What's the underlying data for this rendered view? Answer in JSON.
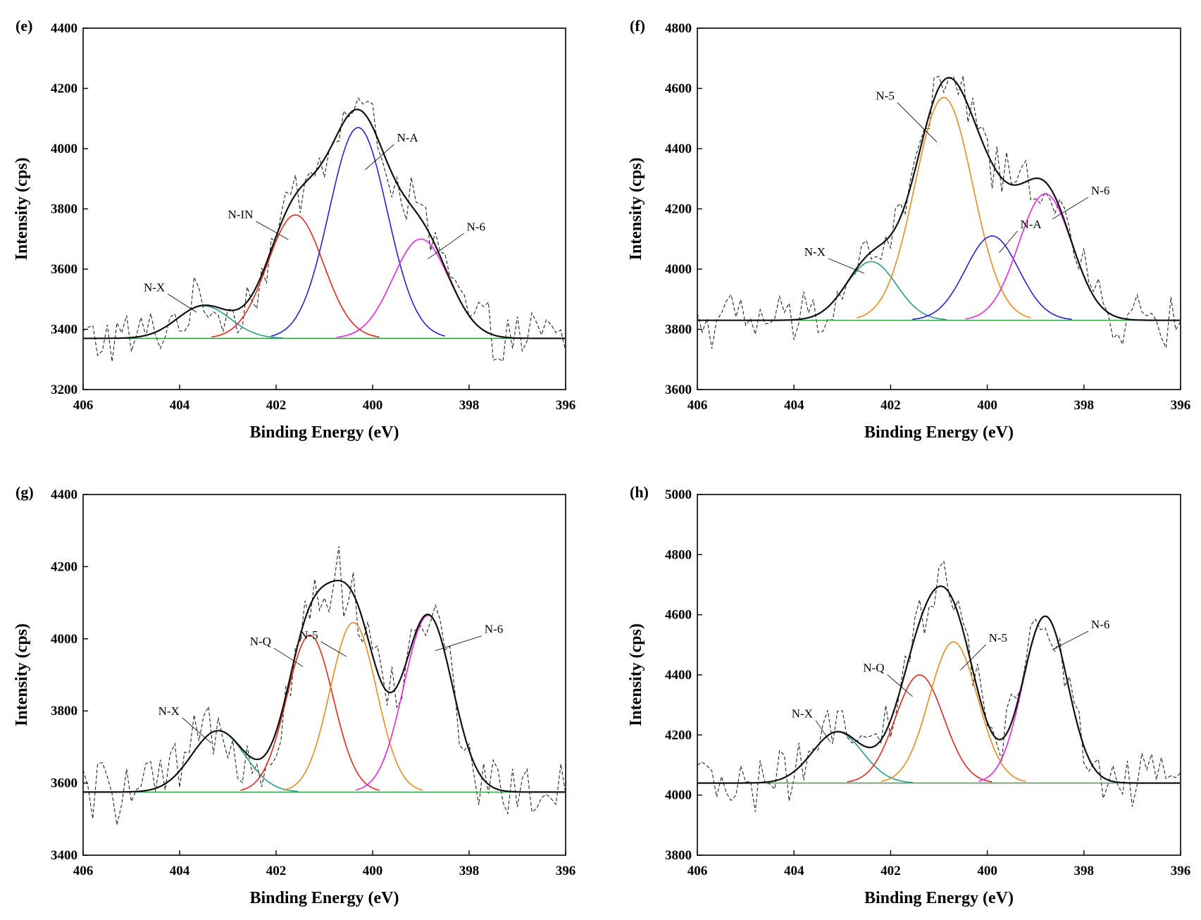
{
  "colors": {
    "envelope": "#111111",
    "raw": "#222222",
    "baseline": "#2a9d3a",
    "N-X": "#2a9a8e",
    "N-IN": "#e8251f",
    "N-Q": "#e8251f",
    "N-A": "#2222dd",
    "N-5": "#f08a1a",
    "N-6": "#ee22ee"
  },
  "chart_data": [
    {
      "type": "line",
      "panel": "(e)",
      "xlabel": "Binding Energy (eV)",
      "ylabel": "Intensity (cps)",
      "xlim": [
        406,
        396
      ],
      "ylim": [
        3200,
        4400
      ],
      "xticks": [
        "406",
        "404",
        "402",
        "400",
        "398",
        "396"
      ],
      "yticks": [
        "3200",
        "3400",
        "3600",
        "3800",
        "4000",
        "4200",
        "4400"
      ],
      "baseline": 3370,
      "peaks": [
        {
          "label": "N-X",
          "center": 403.5,
          "height": 108,
          "sigma": 0.55
        },
        {
          "label": "N-IN",
          "center": 401.6,
          "height": 410,
          "sigma": 0.58
        },
        {
          "label": "N-A",
          "center": 400.3,
          "height": 700,
          "sigma": 0.6
        },
        {
          "label": "N-6",
          "center": 399.0,
          "height": 330,
          "sigma": 0.58
        }
      ],
      "annotations": [
        "N-X",
        "N-IN",
        "N-A",
        "N-6"
      ]
    },
    {
      "type": "line",
      "panel": "(f)",
      "xlabel": "Binding Energy (eV)",
      "ylabel": "Intensity (cps)",
      "xlim": [
        406,
        396
      ],
      "ylim": [
        3600,
        4800
      ],
      "xticks": [
        "406",
        "404",
        "402",
        "400",
        "398",
        "396"
      ],
      "yticks": [
        "3600",
        "3800",
        "4000",
        "4200",
        "4400",
        "4600",
        "4800"
      ],
      "baseline": 3830,
      "peaks": [
        {
          "label": "N-X",
          "center": 402.4,
          "height": 195,
          "sigma": 0.52
        },
        {
          "label": "N-5",
          "center": 400.9,
          "height": 740,
          "sigma": 0.6
        },
        {
          "label": "N-A",
          "center": 399.9,
          "height": 280,
          "sigma": 0.55
        },
        {
          "label": "N-6",
          "center": 398.8,
          "height": 420,
          "sigma": 0.55
        }
      ],
      "annotations": [
        "N-X",
        "N-5",
        "N-A",
        "N-6"
      ]
    },
    {
      "type": "line",
      "panel": "(g)",
      "xlabel": "Binding Energy (eV)",
      "ylabel": "Intensity (cps)",
      "xlim": [
        406,
        396
      ],
      "ylim": [
        3400,
        4400
      ],
      "xticks": [
        "406",
        "404",
        "402",
        "400",
        "398",
        "396"
      ],
      "yticks": [
        "3400",
        "3600",
        "3800",
        "4000",
        "4200",
        "4400"
      ],
      "baseline": 3575,
      "peaks": [
        {
          "label": "N-X",
          "center": 403.2,
          "height": 170,
          "sigma": 0.55
        },
        {
          "label": "N-Q",
          "center": 401.3,
          "height": 435,
          "sigma": 0.48
        },
        {
          "label": "N-5",
          "center": 400.4,
          "height": 470,
          "sigma": 0.48
        },
        {
          "label": "N-6",
          "center": 398.85,
          "height": 490,
          "sigma": 0.5
        }
      ],
      "annotations": [
        "N-X",
        "N-Q",
        "N-5",
        "N-6"
      ]
    },
    {
      "type": "line",
      "panel": "(h)",
      "xlabel": "Binding Energy (eV)",
      "ylabel": "Intensity (cps)",
      "xlim": [
        406,
        396
      ],
      "ylim": [
        3800,
        5000
      ],
      "xticks": [
        "406",
        "404",
        "402",
        "400",
        "398",
        "396"
      ],
      "yticks": [
        "3800",
        "4000",
        "4200",
        "4400",
        "4600",
        "4800",
        "5000"
      ],
      "baseline": 4040,
      "peaks": [
        {
          "label": "N-X",
          "center": 403.1,
          "height": 170,
          "sigma": 0.52
        },
        {
          "label": "N-Q",
          "center": 401.4,
          "height": 360,
          "sigma": 0.5
        },
        {
          "label": "N-5",
          "center": 400.7,
          "height": 470,
          "sigma": 0.5
        },
        {
          "label": "N-6",
          "center": 398.8,
          "height": 555,
          "sigma": 0.46
        }
      ],
      "annotations": [
        "N-X",
        "N-Q",
        "N-5",
        "N-6"
      ]
    }
  ]
}
